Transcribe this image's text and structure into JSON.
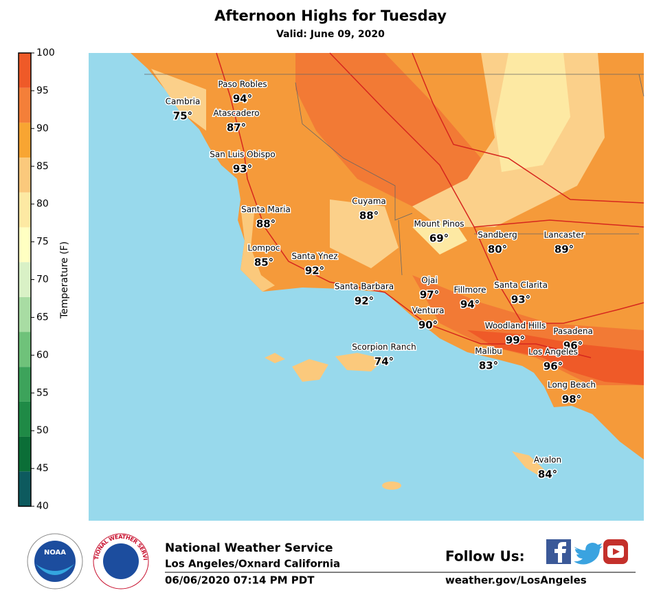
{
  "header": {
    "title": "Afternoon Highs for Tuesday",
    "subtitle": "Valid: June 09, 2020"
  },
  "colorbar": {
    "label": "Temperature (F)",
    "ticks": [
      40,
      45,
      50,
      55,
      60,
      65,
      70,
      75,
      80,
      85,
      90,
      95,
      100
    ],
    "colors": [
      "#0d5a5e",
      "#0b6e37",
      "#1f8a46",
      "#3da35b",
      "#6fc27a",
      "#a8dca3",
      "#d9f1c6",
      "#ffffc2",
      "#fde9a3",
      "#fbc97c",
      "#f8a532",
      "#f47f39",
      "#ef5a28"
    ]
  },
  "cities": [
    {
      "name": "Paso Robles",
      "temp": "94°"
    },
    {
      "name": "Cambria",
      "temp": "75°"
    },
    {
      "name": "Atascadero",
      "temp": "87°"
    },
    {
      "name": "San Luis Obispo",
      "temp": "93°"
    },
    {
      "name": "Santa Maria",
      "temp": "88°"
    },
    {
      "name": "Cuyama",
      "temp": "88°"
    },
    {
      "name": "Mount Pinos",
      "temp": "69°"
    },
    {
      "name": "Sandberg",
      "temp": "80°"
    },
    {
      "name": "Lancaster",
      "temp": "89°"
    },
    {
      "name": "Lompoc",
      "temp": "85°"
    },
    {
      "name": "Santa Ynez",
      "temp": "92°"
    },
    {
      "name": "Santa Barbara",
      "temp": "92°"
    },
    {
      "name": "Ojai",
      "temp": "97°"
    },
    {
      "name": "Fillmore",
      "temp": "94°"
    },
    {
      "name": "Santa Clarita",
      "temp": "93°"
    },
    {
      "name": "Ventura",
      "temp": "90°"
    },
    {
      "name": "Woodland Hills",
      "temp": "99°"
    },
    {
      "name": "Pasadena",
      "temp": "96°"
    },
    {
      "name": "Scorpion Ranch",
      "temp": "74°"
    },
    {
      "name": "Malibu",
      "temp": "83°"
    },
    {
      "name": "Los Angeles",
      "temp": "96°"
    },
    {
      "name": "Long Beach",
      "temp": "98°"
    },
    {
      "name": "Avalon",
      "temp": "84°"
    }
  ],
  "footer": {
    "noaa_logo": "NOAA",
    "nws_logo": "NATIONAL WEATHER SERVICE",
    "agency": "National Weather Service",
    "office": "Los Angeles/Oxnard California",
    "issued": "06/06/2020 07:14 PM PDT",
    "follow": "Follow Us:",
    "website": "weather.gov/LosAngeles"
  }
}
